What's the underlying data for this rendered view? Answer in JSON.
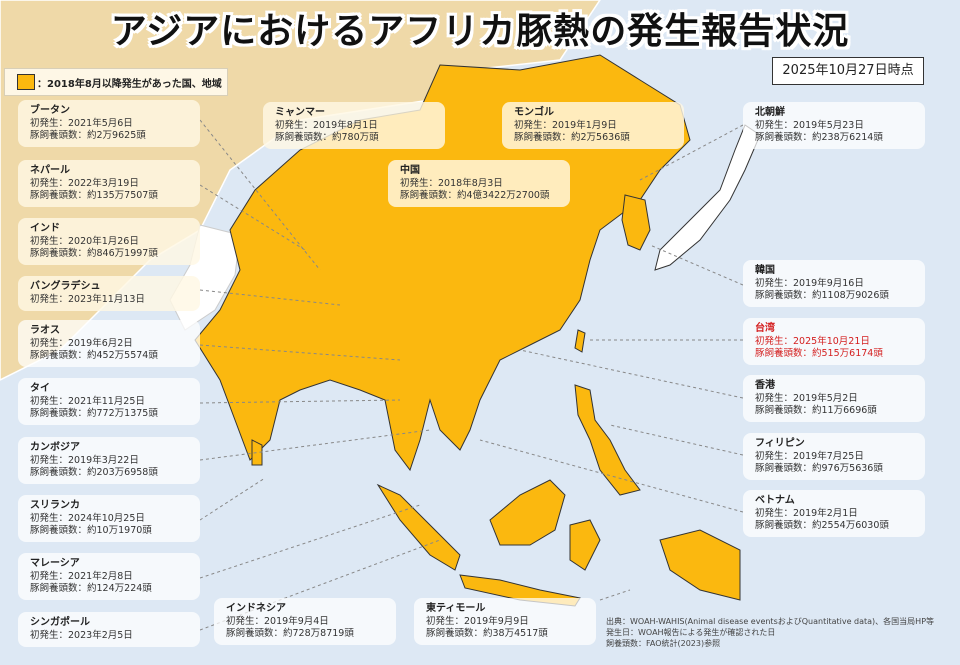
{
  "title": "アジアにおけるアフリカ豚熱の発生報告状況",
  "as_of": "2025年10月27日時点",
  "legend": {
    "label": "：2018年8月以降発生があった国、地域",
    "color": "#fbb80f"
  },
  "field_labels": {
    "first": "初発生：",
    "pigs": "豚飼養頭数："
  },
  "colors": {
    "affected": "#fbb80f",
    "other_land": "#efd9a8",
    "sea": "#dde8f4",
    "highlight_text": "#d42020"
  },
  "countries": [
    {
      "id": "bhutan",
      "name": "ブータン",
      "first": "2021年5月6日",
      "pigs": "約2万9625頭"
    },
    {
      "id": "nepal",
      "name": "ネパール",
      "first": "2022年3月19日",
      "pigs": "約135万7507頭"
    },
    {
      "id": "india",
      "name": "インド",
      "first": "2020年1月26日",
      "pigs": "約846万1997頭"
    },
    {
      "id": "bangladesh",
      "name": "バングラデシュ",
      "first": "2023年11月13日"
    },
    {
      "id": "laos",
      "name": "ラオス",
      "first": "2019年6月2日",
      "pigs": "約452万5574頭"
    },
    {
      "id": "thailand",
      "name": "タイ",
      "first": "2021年11月25日",
      "pigs": "約772万1375頭"
    },
    {
      "id": "cambodia",
      "name": "カンボジア",
      "first": "2019年3月22日",
      "pigs": "約203万6958頭"
    },
    {
      "id": "srilanka",
      "name": "スリランカ",
      "first": "2024年10月25日",
      "pigs": "約10万1970頭"
    },
    {
      "id": "malaysia",
      "name": "マレーシア",
      "first": "2021年2月8日",
      "pigs": "約124万224頭"
    },
    {
      "id": "singapore",
      "name": "シンガポール",
      "first": "2023年2月5日"
    },
    {
      "id": "myanmar",
      "name": "ミャンマー",
      "first": "2019年8月1日",
      "pigs": "約780万頭"
    },
    {
      "id": "mongolia",
      "name": "モンゴル",
      "first": "2019年1月9日",
      "pigs": "約2万5636頭"
    },
    {
      "id": "china",
      "name": "中国",
      "first": "2018年8月3日",
      "pigs": "約4億3422万2700頭"
    },
    {
      "id": "north-korea",
      "name": "北朝鮮",
      "first": "2019年5月23日",
      "pigs": "約238万6214頭"
    },
    {
      "id": "south-korea",
      "name": "韓国",
      "first": "2019年9月16日",
      "pigs": "約1108万9026頭"
    },
    {
      "id": "taiwan",
      "name": "台湾",
      "first": "2025年10月21日",
      "pigs": "約515万6174頭",
      "highlight": true
    },
    {
      "id": "hong-kong",
      "name": "香港",
      "first": "2019年5月2日",
      "pigs": "約11万6696頭"
    },
    {
      "id": "philippines",
      "name": "フィリピン",
      "first": "2019年7月25日",
      "pigs": "約976万5636頭"
    },
    {
      "id": "vietnam",
      "name": "ベトナム",
      "first": "2019年2月1日",
      "pigs": "約2554万6030頭"
    },
    {
      "id": "indonesia",
      "name": "インドネシア",
      "first": "2019年9月4日",
      "pigs": "約728万8719頭"
    },
    {
      "id": "timor-leste",
      "name": "東ティモール",
      "first": "2019年9月9日",
      "pigs": "約38万4517頭"
    }
  ],
  "source_notes": [
    "出典：WOAH-WAHIS(Animal disease eventsおよびQuantitative data)、各国当局HP等",
    "発生日：WOAH報告による発生が確認された日",
    "飼養頭数：FAO統計(2023)参照"
  ]
}
